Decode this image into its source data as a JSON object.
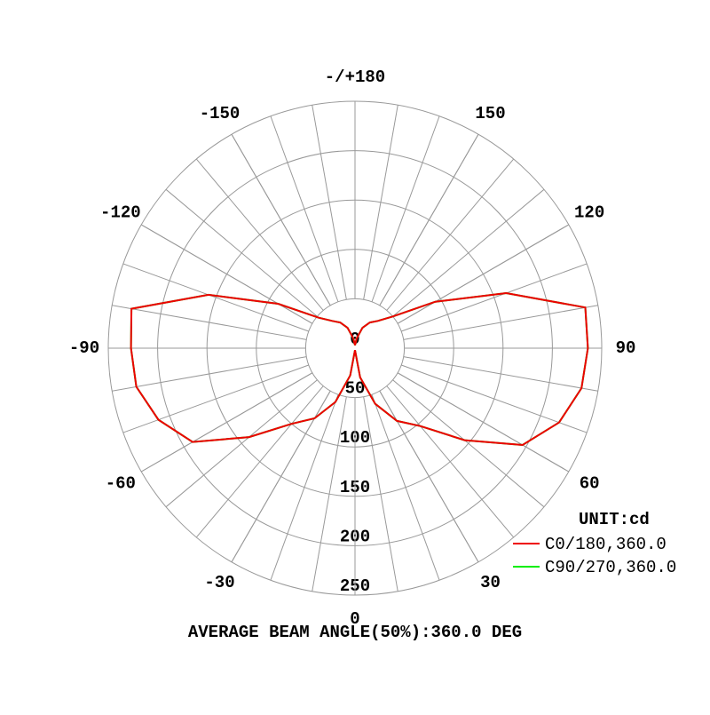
{
  "chart_data": {
    "type": "polar",
    "unit_label": "UNIT:cd",
    "footer": "AVERAGE BEAM ANGLE(50%):360.0 DEG",
    "x": [
      -180,
      -170,
      -160,
      -150,
      -140,
      -130,
      -120,
      -110,
      -100,
      -90,
      -80,
      -70,
      -60,
      -50,
      -40,
      -30,
      -20,
      -10,
      0,
      10,
      20,
      30,
      40,
      50,
      60,
      70,
      80,
      90,
      100,
      110,
      120,
      130,
      140,
      150,
      160,
      170,
      180
    ],
    "xticks": [
      {
        "value": 180,
        "label": "-/+180"
      },
      150,
      120,
      90,
      60,
      30,
      0,
      -30,
      -60,
      -90,
      -120,
      -150
    ],
    "rlim": [
      0,
      250
    ],
    "rticks": [
      0,
      50,
      100,
      150,
      200,
      250
    ],
    "grid": true,
    "legend": "lower right",
    "series": [
      {
        "name": "C90/270,360.0",
        "color": "#00ee00",
        "values": [
          3,
          10,
          22,
          30,
          36,
          48,
          90,
          158,
          230,
          227,
          225,
          212,
          190,
          140,
          100,
          82,
          58,
          28,
          2,
          30,
          60,
          85,
          103,
          145,
          196,
          220,
          233,
          236,
          237,
          163,
          94,
          50,
          36,
          30,
          22,
          10,
          3
        ]
      },
      {
        "name": "C0/180,360.0",
        "color": "#ee0000",
        "values": [
          3,
          10,
          22,
          30,
          36,
          48,
          90,
          158,
          230,
          227,
          225,
          212,
          190,
          140,
          100,
          82,
          58,
          28,
          2,
          30,
          60,
          85,
          103,
          145,
          196,
          220,
          233,
          236,
          237,
          163,
          94,
          50,
          36,
          30,
          22,
          10,
          3
        ]
      }
    ]
  }
}
